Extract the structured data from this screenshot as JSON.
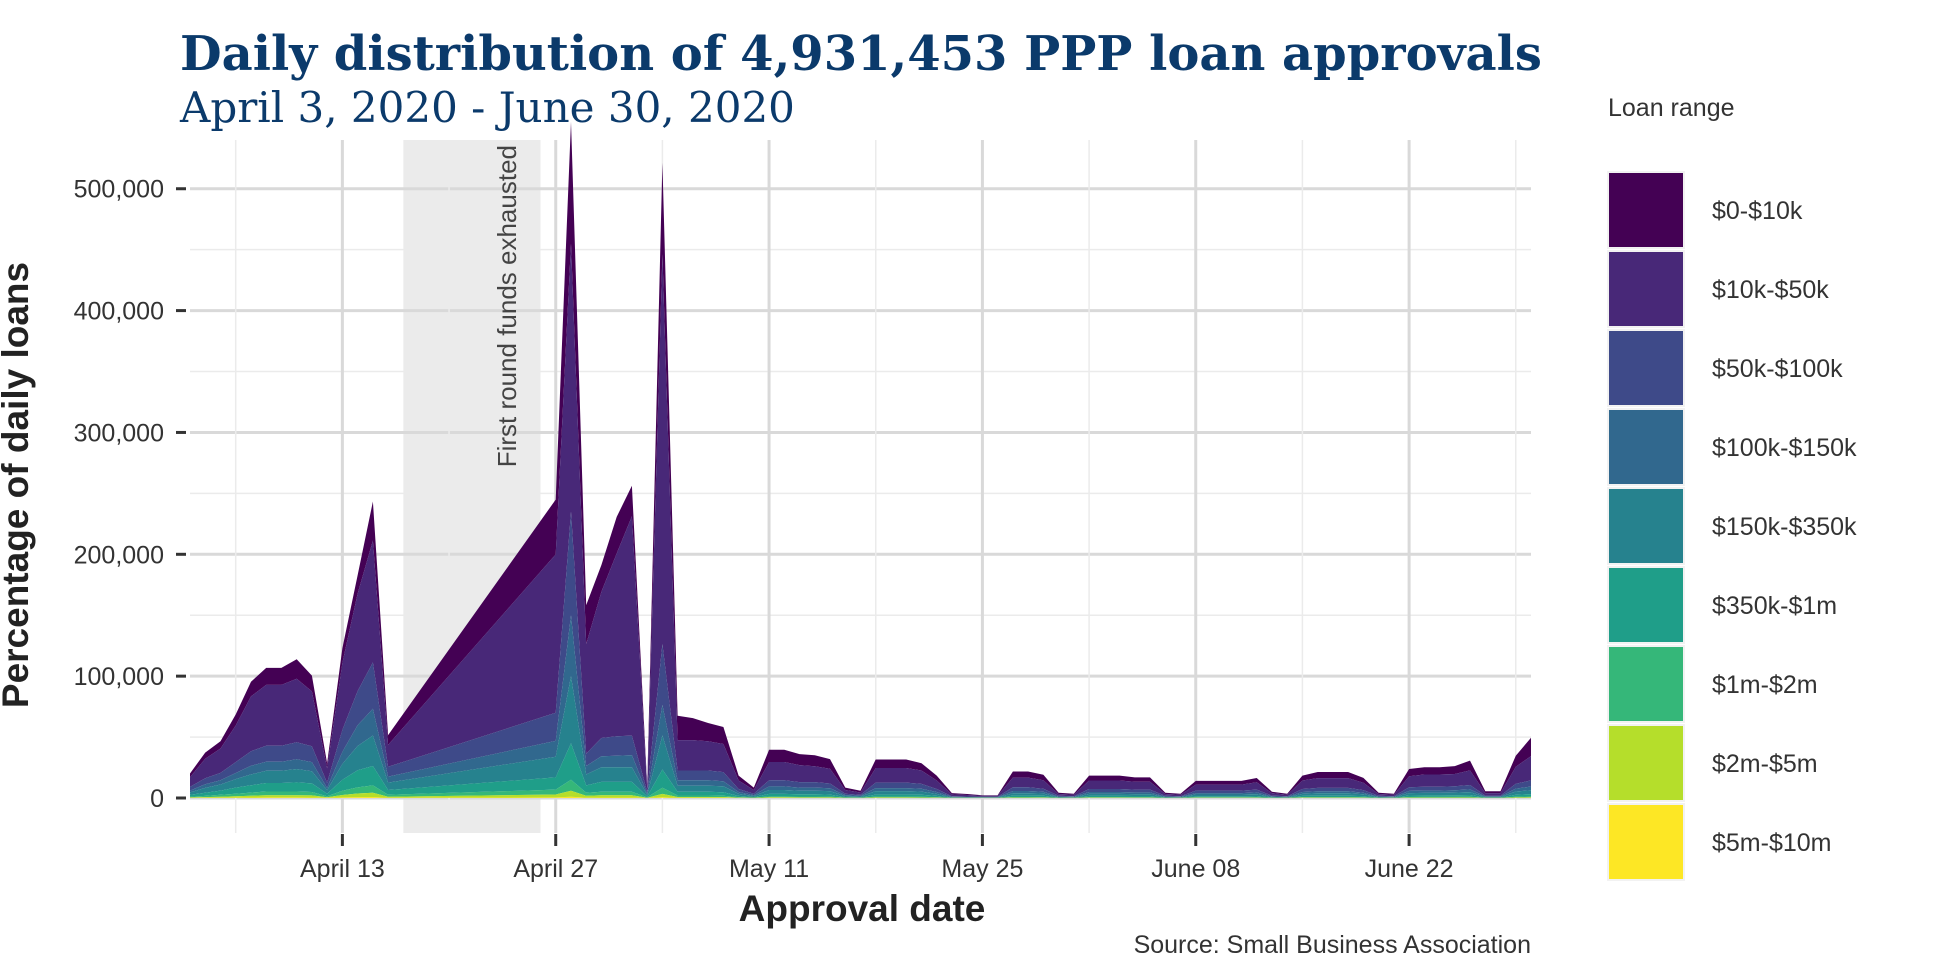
{
  "chart_data": {
    "type": "area",
    "stacked": true,
    "title": "Daily distribution of 4,931,453 PPP loan approvals",
    "subtitle": "April 3, 2020 - June 30, 2020",
    "xlabel": "Approval date",
    "ylabel": "Percentage of daily loans",
    "ylim": [
      0,
      540000
    ],
    "yticks": [
      0,
      100000,
      200000,
      300000,
      400000,
      500000
    ],
    "ytick_labels": [
      "0",
      "100,000",
      "200,000",
      "300,000",
      "400,000",
      "500,000"
    ],
    "xlim": [
      "2020-04-03",
      "2020-06-30"
    ],
    "xticks": [
      "2020-04-13",
      "2020-04-27",
      "2020-05-11",
      "2020-05-25",
      "2020-06-08",
      "2020-06-22"
    ],
    "xtick_labels": [
      "April 13",
      "April 27",
      "May 11",
      "May 25",
      "June 08",
      "June 22"
    ],
    "grid": true,
    "legend_title": "Loan range",
    "legend_position": "right",
    "caption": "Source: Small Business Association",
    "annotation": {
      "label": "First round funds exhausted",
      "x_start": "2020-04-17",
      "x_end": "2020-04-26"
    },
    "x": [
      "2020-04-03",
      "2020-04-04",
      "2020-04-05",
      "2020-04-06",
      "2020-04-07",
      "2020-04-08",
      "2020-04-09",
      "2020-04-10",
      "2020-04-11",
      "2020-04-12",
      "2020-04-13",
      "2020-04-14",
      "2020-04-15",
      "2020-04-16",
      "2020-04-27",
      "2020-04-28",
      "2020-04-29",
      "2020-04-30",
      "2020-05-01",
      "2020-05-02",
      "2020-05-03",
      "2020-05-04",
      "2020-05-05",
      "2020-05-06",
      "2020-05-07",
      "2020-05-08",
      "2020-05-09",
      "2020-05-10",
      "2020-05-11",
      "2020-05-12",
      "2020-05-13",
      "2020-05-14",
      "2020-05-15",
      "2020-05-16",
      "2020-05-17",
      "2020-05-18",
      "2020-05-19",
      "2020-05-20",
      "2020-05-21",
      "2020-05-22",
      "2020-05-23",
      "2020-05-24",
      "2020-05-25",
      "2020-05-26",
      "2020-05-27",
      "2020-05-28",
      "2020-05-29",
      "2020-05-30",
      "2020-05-31",
      "2020-06-01",
      "2020-06-02",
      "2020-06-03",
      "2020-06-04",
      "2020-06-05",
      "2020-06-06",
      "2020-06-07",
      "2020-06-08",
      "2020-06-09",
      "2020-06-10",
      "2020-06-11",
      "2020-06-12",
      "2020-06-13",
      "2020-06-14",
      "2020-06-15",
      "2020-06-16",
      "2020-06-17",
      "2020-06-18",
      "2020-06-19",
      "2020-06-20",
      "2020-06-21",
      "2020-06-22",
      "2020-06-23",
      "2020-06-24",
      "2020-06-25",
      "2020-06-26",
      "2020-06-27",
      "2020-06-28",
      "2020-06-29",
      "2020-06-30"
    ],
    "series": [
      {
        "name": "$0-$10k",
        "color": "#440154",
        "values": [
          3000,
          5000,
          6000,
          9000,
          12000,
          14000,
          14000,
          16000,
          13000,
          4000,
          12000,
          15000,
          32000,
          8000,
          45000,
          100000,
          32000,
          22000,
          30000,
          25000,
          2000,
          75000,
          20000,
          18000,
          15000,
          14000,
          4000,
          2000,
          10000,
          10000,
          9000,
          9000,
          8000,
          2000,
          1500,
          7000,
          7000,
          7000,
          6000,
          4000,
          1000,
          800,
          500,
          500,
          5000,
          5000,
          4500,
          1000,
          800,
          4000,
          4000,
          4000,
          3500,
          3500,
          1000,
          800,
          3000,
          3000,
          3000,
          3000,
          3500,
          1200,
          800,
          4000,
          5000,
          5000,
          5000,
          4000,
          1000,
          800,
          6000,
          6000,
          6000,
          6500,
          8000,
          1500,
          1500,
          9000,
          15000
        ]
      },
      {
        "name": "$10k-$50k",
        "color": "#482878",
        "values": [
          8000,
          16000,
          20000,
          30000,
          45000,
          50000,
          50000,
          52000,
          45000,
          12000,
          55000,
          80000,
          100000,
          18000,
          130000,
          220000,
          90000,
          120000,
          150000,
          180000,
          3000,
          320000,
          25000,
          25000,
          24000,
          23000,
          7000,
          3000,
          15000,
          15000,
          14000,
          13000,
          12000,
          3000,
          2000,
          12000,
          12000,
          12000,
          11000,
          7000,
          1500,
          1200,
          800,
          800,
          8000,
          8000,
          7000,
          1500,
          1200,
          7000,
          7000,
          7000,
          6500,
          6500,
          1500,
          1200,
          5000,
          5000,
          5000,
          5000,
          6000,
          2000,
          1200,
          7000,
          8000,
          8000,
          8000,
          6000,
          1500,
          1200,
          9000,
          10000,
          10000,
          10000,
          12000,
          2000,
          2000,
          14000,
          20000
        ]
      },
      {
        "name": "$50k-$100k",
        "color": "#3e4a89",
        "values": [
          3000,
          5000,
          6000,
          9000,
          12000,
          13000,
          13000,
          14000,
          13000,
          4000,
          18000,
          28000,
          38000,
          8000,
          23000,
          85000,
          10000,
          15000,
          16000,
          16000,
          1500,
          50000,
          8000,
          8000,
          8000,
          7500,
          2500,
          1200,
          5000,
          5000,
          4500,
          4500,
          4000,
          1200,
          800,
          4500,
          4500,
          4500,
          4000,
          2500,
          500,
          400,
          300,
          300,
          3000,
          3000,
          2500,
          600,
          500,
          2500,
          2500,
          2500,
          2300,
          2300,
          600,
          500,
          2000,
          2000,
          2000,
          2000,
          2300,
          700,
          500,
          2500,
          2800,
          2800,
          2800,
          2200,
          600,
          500,
          3000,
          3200,
          3200,
          3300,
          3600,
          700,
          700,
          4000,
          5000
        ]
      },
      {
        "name": "$100k-$150k",
        "color": "#31688e",
        "values": [
          1500,
          3000,
          3500,
          5000,
          7000,
          7500,
          7500,
          8000,
          7500,
          2000,
          10000,
          17000,
          22000,
          5000,
          13000,
          50000,
          7000,
          9000,
          9500,
          10000,
          1000,
          25000,
          4500,
          4500,
          4500,
          4200,
          1500,
          700,
          3000,
          3000,
          2500,
          2500,
          2300,
          700,
          500,
          2500,
          2500,
          2500,
          2300,
          1500,
          300,
          250,
          200,
          200,
          1800,
          1800,
          1500,
          350,
          300,
          1500,
          1500,
          1500,
          1400,
          1400,
          350,
          300,
          1200,
          1200,
          1200,
          1200,
          1400,
          400,
          300,
          1500,
          1700,
          1700,
          1700,
          1300,
          350,
          300,
          1800,
          1900,
          1900,
          2000,
          2200,
          400,
          400,
          2400,
          3000
        ]
      },
      {
        "name": "$150k-$350k",
        "color": "#26828e",
        "values": [
          2000,
          4000,
          5000,
          7000,
          9000,
          10000,
          10000,
          11000,
          10000,
          3000,
          13000,
          20000,
          25000,
          6000,
          17000,
          55000,
          9000,
          12000,
          12000,
          12000,
          1200,
          28000,
          5000,
          5000,
          5000,
          4800,
          1700,
          800,
          3200,
          3200,
          3000,
          3000,
          2800,
          800,
          600,
          2800,
          2800,
          2800,
          2600,
          1700,
          350,
          300,
          250,
          250,
          2000,
          2000,
          1800,
          400,
          350,
          1700,
          1700,
          1700,
          1600,
          1600,
          400,
          350,
          1400,
          1400,
          1400,
          1400,
          1600,
          450,
          350,
          1700,
          1900,
          1900,
          1900,
          1500,
          400,
          350,
          2000,
          2100,
          2100,
          2200,
          2400,
          450,
          450,
          2600,
          3200
        ]
      },
      {
        "name": "$350k-$1m",
        "color": "#1f9e89",
        "values": [
          1500,
          2500,
          3500,
          5000,
          6000,
          7000,
          7000,
          7500,
          7000,
          2000,
          9000,
          14000,
          16000,
          4000,
          10000,
          30000,
          6000,
          8000,
          8000,
          8000,
          800,
          15000,
          3000,
          3000,
          3000,
          2900,
          1000,
          500,
          2000,
          2000,
          1800,
          1800,
          1700,
          500,
          350,
          1700,
          1700,
          1700,
          1600,
          1000,
          200,
          180,
          150,
          150,
          1200,
          1200,
          1100,
          250,
          200,
          1000,
          1000,
          1000,
          950,
          950,
          250,
          200,
          850,
          850,
          850,
          850,
          950,
          270,
          200,
          1000,
          1150,
          1150,
          1150,
          900,
          250,
          200,
          1200,
          1250,
          1250,
          1300,
          1450,
          270,
          270,
          1600,
          1900
        ]
      },
      {
        "name": "$1m-$2m",
        "color": "#35b779",
        "values": [
          600,
          1000,
          1500,
          2000,
          2500,
          3000,
          3000,
          3000,
          2800,
          800,
          3500,
          5000,
          6000,
          1500,
          4000,
          9000,
          2500,
          3000,
          3000,
          3000,
          300,
          5000,
          1200,
          1200,
          1200,
          1100,
          400,
          200,
          800,
          800,
          700,
          700,
          650,
          200,
          150,
          650,
          650,
          650,
          600,
          400,
          80,
          70,
          60,
          60,
          450,
          450,
          400,
          100,
          80,
          400,
          400,
          400,
          380,
          380,
          100,
          80,
          340,
          340,
          340,
          340,
          380,
          110,
          80,
          400,
          450,
          450,
          450,
          360,
          100,
          80,
          480,
          500,
          500,
          520,
          580,
          110,
          110,
          640,
          760
        ]
      },
      {
        "name": "$2m-$5m",
        "color": "#b5de2b",
        "values": [
          400,
          600,
          900,
          1200,
          1500,
          1800,
          1800,
          1800,
          1700,
          500,
          2000,
          3000,
          3500,
          900,
          2400,
          5000,
          1500,
          1800,
          1800,
          1800,
          200,
          2800,
          700,
          700,
          700,
          650,
          250,
          120,
          450,
          450,
          420,
          420,
          390,
          120,
          90,
          390,
          390,
          390,
          360,
          240,
          50,
          40,
          35,
          35,
          270,
          270,
          240,
          60,
          50,
          240,
          240,
          240,
          230,
          230,
          60,
          50,
          200,
          200,
          200,
          200,
          230,
          65,
          50,
          240,
          270,
          270,
          270,
          215,
          60,
          50,
          290,
          300,
          300,
          310,
          350,
          65,
          65,
          380,
          450
        ]
      },
      {
        "name": "$5m-$10m",
        "color": "#fde725",
        "values": [
          100,
          150,
          200,
          300,
          400,
          500,
          500,
          500,
          450,
          150,
          500,
          700,
          800,
          200,
          500,
          1000,
          300,
          400,
          400,
          400,
          50,
          600,
          150,
          150,
          150,
          140,
          50,
          25,
          100,
          100,
          90,
          90,
          85,
          25,
          20,
          85,
          85,
          85,
          80,
          50,
          10,
          10,
          8,
          8,
          60,
          60,
          50,
          15,
          10,
          50,
          50,
          50,
          48,
          48,
          15,
          10,
          42,
          42,
          42,
          42,
          48,
          14,
          10,
          50,
          57,
          57,
          57,
          45,
          13,
          10,
          60,
          63,
          63,
          65,
          73,
          14,
          14,
          80,
          95
        ]
      }
    ]
  }
}
